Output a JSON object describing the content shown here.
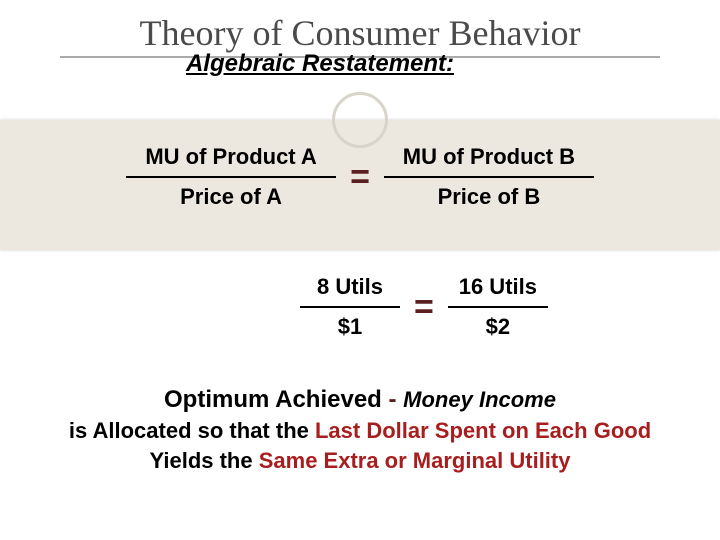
{
  "title": "Theory of Consumer Behavior",
  "subtitle": "Algebraic Restatement:",
  "colors": {
    "band_bg": "#ece8df",
    "equals_color": "#5b1f1f",
    "red_text": "#a81e1e",
    "title_color": "#4a4a4a",
    "circle_border": "#d8d4ca"
  },
  "equation1": {
    "left": {
      "numer": "MU of Product A",
      "denom": "Price of A"
    },
    "right": {
      "numer": "MU of Product B",
      "denom": "Price of B"
    },
    "equals": "="
  },
  "equation2": {
    "left": {
      "numer": "8 Utils",
      "denom": "$1"
    },
    "right": {
      "numer": "16 Utils",
      "denom": "$2"
    },
    "equals": "="
  },
  "conclusion": {
    "heading": "Optimum Achieved",
    "dash": " - ",
    "italic_lead": "Money Income",
    "line2_a": "is Allocated so that the ",
    "red1": "Last Dollar Spent on Each Good",
    "line2_b": " Yields the ",
    "red2": "Same Extra or Marginal Utility"
  }
}
